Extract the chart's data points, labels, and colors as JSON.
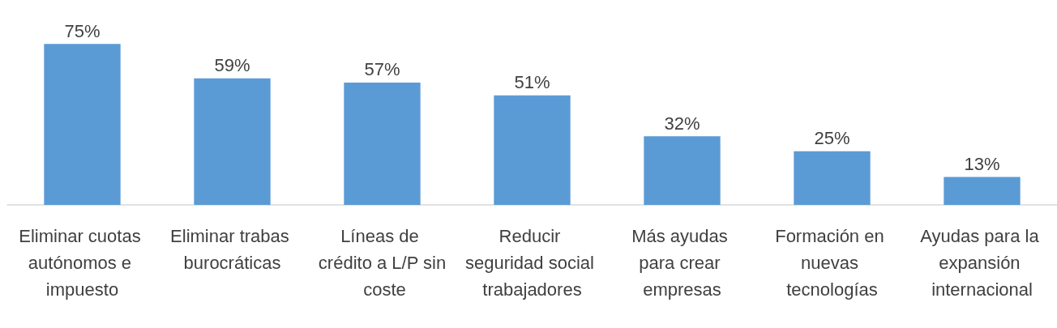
{
  "chart_data": {
    "type": "bar",
    "categories": [
      "Eliminar cuotas autónomos e impuesto",
      "Eliminar trabas burocráticas",
      "Líneas de crédito a L/P sin coste",
      "Reducir seguridad social trabajadores",
      "Más ayudas para crear empresas",
      "Formación en nuevas tecnologías",
      "Ayudas para la expansión internacional"
    ],
    "values": [
      75,
      59,
      57,
      51,
      32,
      25,
      13
    ],
    "value_labels": [
      "75%",
      "59%",
      "57%",
      "51%",
      "32%",
      "25%",
      "13%"
    ],
    "color": "#5b9bd5"
  }
}
